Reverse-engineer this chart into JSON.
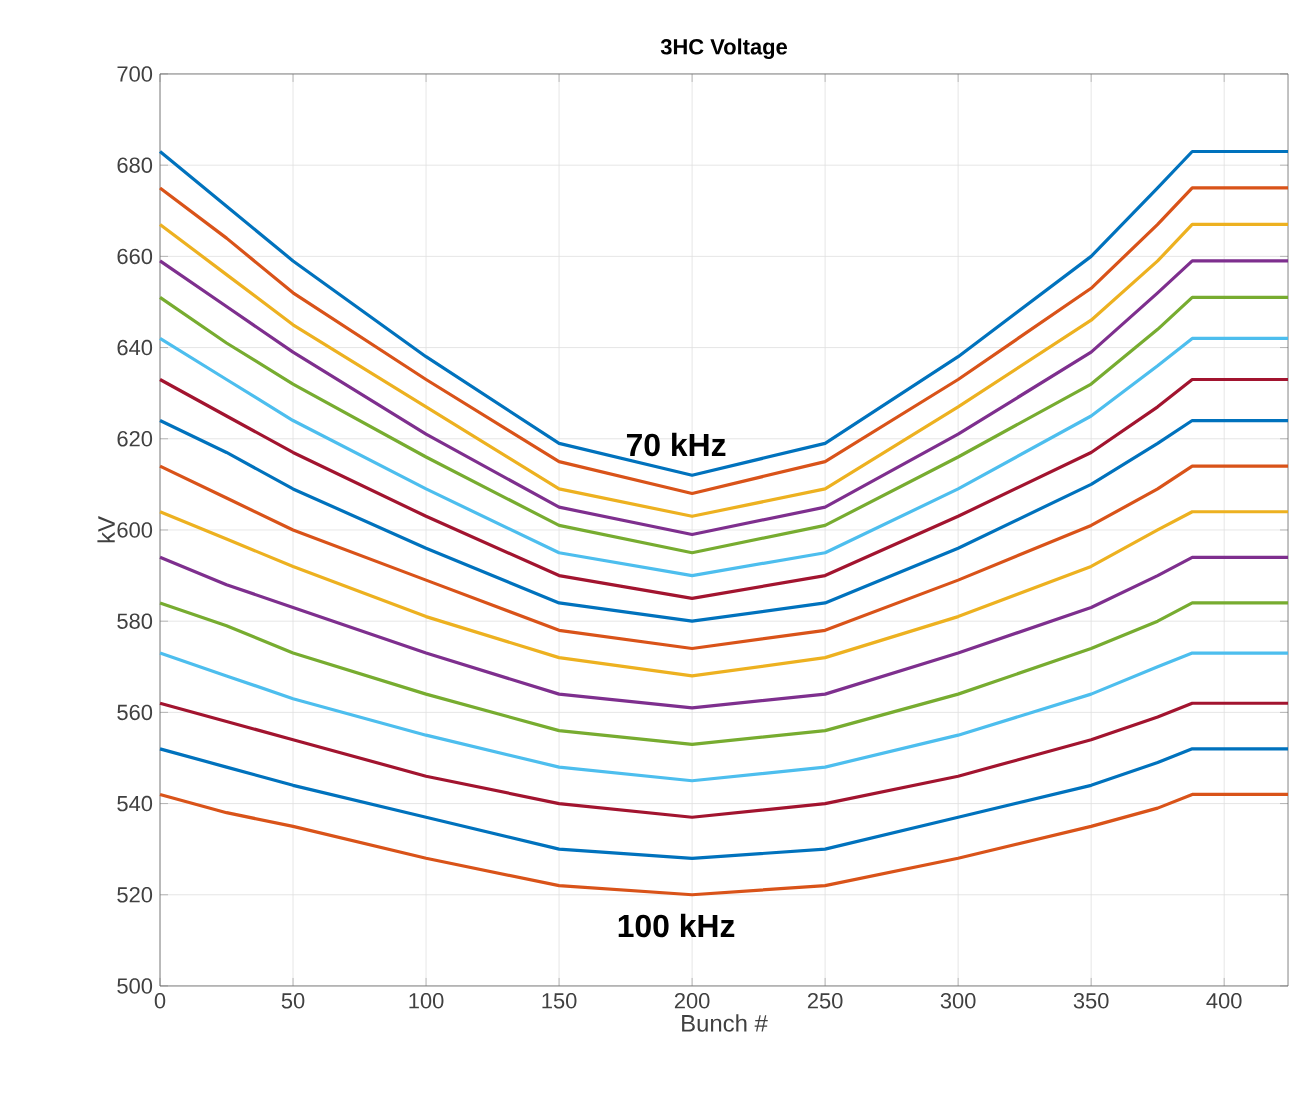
{
  "chart_data": {
    "type": "line",
    "title": "3HC Voltage",
    "xlabel": "Bunch #",
    "ylabel": "kV",
    "xlim": [
      0,
      424
    ],
    "xticks": [
      0,
      50,
      100,
      150,
      200,
      250,
      300,
      350,
      400
    ],
    "ylim": [
      500,
      700
    ],
    "yticks": [
      500,
      520,
      540,
      560,
      580,
      600,
      620,
      640,
      660,
      680,
      700
    ],
    "grid": true,
    "line_style": "solid",
    "marker": "none",
    "x": [
      0,
      25,
      50,
      100,
      150,
      200,
      250,
      300,
      350,
      375,
      388,
      424
    ],
    "series": [
      {
        "color": "#0072bd",
        "values": [
          683,
          671,
          659,
          638,
          619,
          612,
          619,
          638,
          660,
          675,
          683,
          683
        ]
      },
      {
        "color": "#d95319",
        "values": [
          675,
          664,
          652,
          633,
          615,
          608,
          615,
          633,
          653,
          667,
          675,
          675
        ]
      },
      {
        "color": "#edb120",
        "values": [
          667,
          656,
          645,
          627,
          609,
          603,
          609,
          627,
          646,
          659,
          667,
          667
        ]
      },
      {
        "color": "#7e2f8e",
        "values": [
          659,
          649,
          639,
          621,
          605,
          599,
          605,
          621,
          639,
          652,
          659,
          659
        ]
      },
      {
        "color": "#77ac30",
        "values": [
          651,
          641,
          632,
          616,
          601,
          595,
          601,
          616,
          632,
          644,
          651,
          651
        ]
      },
      {
        "color": "#4dbeee",
        "values": [
          642,
          633,
          624,
          609,
          595,
          590,
          595,
          609,
          625,
          636,
          642,
          642
        ]
      },
      {
        "color": "#a2142f",
        "values": [
          633,
          625,
          617,
          603,
          590,
          585,
          590,
          603,
          617,
          627,
          633,
          633
        ]
      },
      {
        "color": "#0072bd",
        "values": [
          624,
          617,
          609,
          596,
          584,
          580,
          584,
          596,
          610,
          619,
          624,
          624
        ]
      },
      {
        "color": "#d95319",
        "values": [
          614,
          607,
          600,
          589,
          578,
          574,
          578,
          589,
          601,
          609,
          614,
          614
        ]
      },
      {
        "color": "#edb120",
        "values": [
          604,
          598,
          592,
          581,
          572,
          568,
          572,
          581,
          592,
          600,
          604,
          604
        ]
      },
      {
        "color": "#7e2f8e",
        "values": [
          594,
          588,
          583,
          573,
          564,
          561,
          564,
          573,
          583,
          590,
          594,
          594
        ]
      },
      {
        "color": "#77ac30",
        "values": [
          584,
          579,
          573,
          564,
          556,
          553,
          556,
          564,
          574,
          580,
          584,
          584
        ]
      },
      {
        "color": "#4dbeee",
        "values": [
          573,
          568,
          563,
          555,
          548,
          545,
          548,
          555,
          564,
          570,
          573,
          573
        ]
      },
      {
        "color": "#a2142f",
        "values": [
          562,
          558,
          554,
          546,
          540,
          537,
          540,
          546,
          554,
          559,
          562,
          562
        ]
      },
      {
        "color": "#0072bd",
        "values": [
          552,
          548,
          544,
          537,
          530,
          528,
          530,
          537,
          544,
          549,
          552,
          552
        ]
      },
      {
        "color": "#d95319",
        "values": [
          542,
          538,
          535,
          528,
          522,
          520,
          522,
          528,
          535,
          539,
          542,
          542
        ]
      }
    ],
    "annotations": [
      "70 kHz",
      "100 kHz"
    ]
  }
}
